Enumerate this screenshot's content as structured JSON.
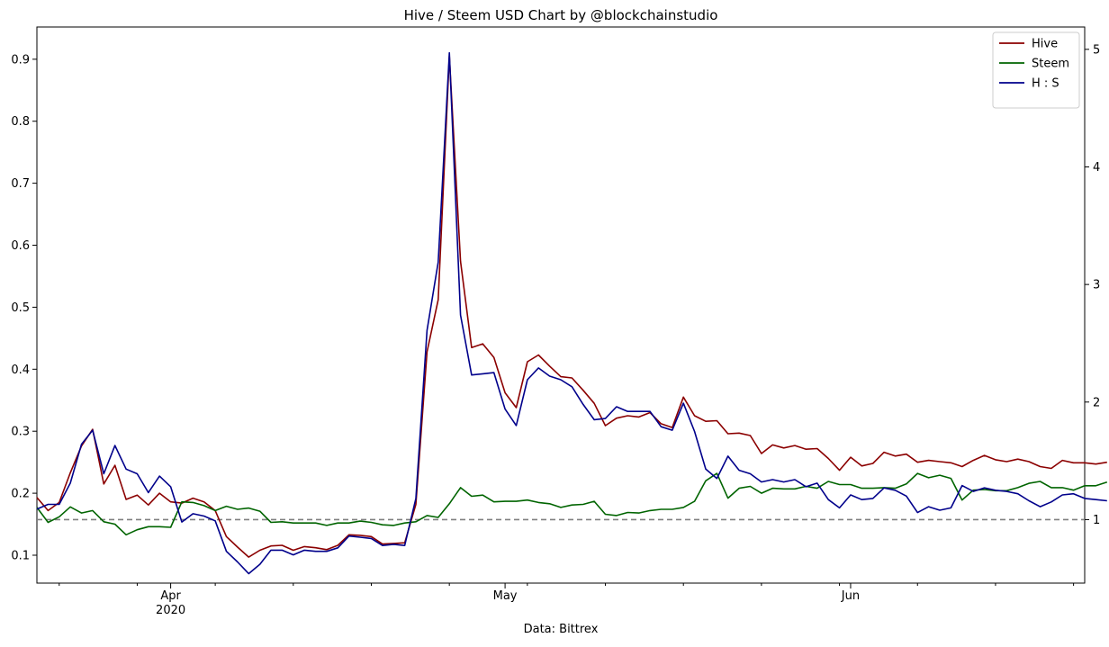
{
  "chart_data": {
    "type": "line",
    "title": "Hive / Steem USD Chart by @blockchainstudio",
    "xlabel": "Data: Bittrex",
    "ylabel": "",
    "ylim": [
      0.055,
      0.952
    ],
    "y2lim": [
      0.46,
      5.19
    ],
    "xlim": [
      "2020-03-20",
      "2020-06-22"
    ],
    "grid": false,
    "legend": "top-right",
    "x_ticks": [
      {
        "date": "2020-04-01",
        "label": "Apr",
        "sublabel": "2020"
      },
      {
        "date": "2020-05-01",
        "label": "May",
        "sublabel": ""
      },
      {
        "date": "2020-06-01",
        "label": "Jun",
        "sublabel": ""
      }
    ],
    "y_ticks": [
      0.1,
      0.2,
      0.3,
      0.4,
      0.5,
      0.6,
      0.7,
      0.8,
      0.9
    ],
    "y2_ticks": [
      1,
      2,
      3,
      4,
      5
    ],
    "reference_line": {
      "axis": "right",
      "value": 1.0,
      "style": "dashed",
      "color": "#808080"
    },
    "x_start": "2020-03-20",
    "series": [
      {
        "name": "Hive",
        "color": "#8b0000",
        "axis": "left",
        "values": [
          0.193,
          0.172,
          0.185,
          0.233,
          0.276,
          0.303,
          0.215,
          0.245,
          0.19,
          0.197,
          0.181,
          0.2,
          0.186,
          0.184,
          0.192,
          0.186,
          0.172,
          0.13,
          0.113,
          0.097,
          0.108,
          0.115,
          0.116,
          0.108,
          0.114,
          0.112,
          0.109,
          0.116,
          0.133,
          0.132,
          0.13,
          0.118,
          0.119,
          0.12,
          0.182,
          0.428,
          0.512,
          0.905,
          0.574,
          0.435,
          0.441,
          0.419,
          0.362,
          0.338,
          0.412,
          0.423,
          0.405,
          0.388,
          0.386,
          0.366,
          0.345,
          0.309,
          0.321,
          0.325,
          0.323,
          0.33,
          0.312,
          0.306,
          0.355,
          0.325,
          0.316,
          0.317,
          0.296,
          0.297,
          0.293,
          0.264,
          0.278,
          0.273,
          0.277,
          0.271,
          0.272,
          0.256,
          0.237,
          0.258,
          0.244,
          0.248,
          0.266,
          0.26,
          0.263,
          0.25,
          0.253,
          0.251,
          0.249,
          0.243,
          0.253,
          0.261,
          0.254,
          0.251,
          0.255,
          0.251,
          0.243,
          0.24,
          0.253,
          0.249,
          0.249,
          0.247,
          0.25
        ]
      },
      {
        "name": "Steem",
        "color": "#006400",
        "axis": "left",
        "values": [
          0.177,
          0.153,
          0.162,
          0.178,
          0.168,
          0.172,
          0.154,
          0.15,
          0.133,
          0.141,
          0.146,
          0.146,
          0.145,
          0.186,
          0.185,
          0.18,
          0.172,
          0.179,
          0.174,
          0.176,
          0.171,
          0.153,
          0.154,
          0.152,
          0.152,
          0.152,
          0.148,
          0.152,
          0.152,
          0.155,
          0.153,
          0.149,
          0.148,
          0.152,
          0.154,
          0.164,
          0.161,
          0.183,
          0.209,
          0.195,
          0.197,
          0.186,
          0.187,
          0.187,
          0.189,
          0.185,
          0.183,
          0.177,
          0.181,
          0.182,
          0.187,
          0.166,
          0.164,
          0.169,
          0.168,
          0.172,
          0.174,
          0.174,
          0.177,
          0.187,
          0.22,
          0.232,
          0.192,
          0.208,
          0.211,
          0.2,
          0.208,
          0.207,
          0.207,
          0.211,
          0.208,
          0.219,
          0.214,
          0.214,
          0.208,
          0.208,
          0.209,
          0.208,
          0.215,
          0.232,
          0.225,
          0.229,
          0.224,
          0.189,
          0.205,
          0.206,
          0.204,
          0.204,
          0.209,
          0.216,
          0.219,
          0.209,
          0.209,
          0.205,
          0.212,
          0.212,
          0.218
        ]
      },
      {
        "name": "H : S",
        "color": "#00008b",
        "axis": "right",
        "values": [
          1.09,
          1.13,
          1.13,
          1.31,
          1.64,
          1.76,
          1.39,
          1.63,
          1.43,
          1.39,
          1.23,
          1.37,
          1.28,
          0.98,
          1.05,
          1.03,
          0.99,
          0.73,
          0.64,
          0.54,
          0.62,
          0.74,
          0.74,
          0.7,
          0.74,
          0.73,
          0.73,
          0.76,
          0.86,
          0.85,
          0.84,
          0.78,
          0.79,
          0.78,
          1.18,
          2.61,
          3.19,
          4.97,
          2.74,
          2.23,
          2.24,
          2.25,
          1.94,
          1.8,
          2.19,
          2.29,
          2.22,
          2.19,
          2.13,
          1.98,
          1.85,
          1.86,
          1.96,
          1.92,
          1.92,
          1.92,
          1.79,
          1.76,
          1.99,
          1.75,
          1.43,
          1.35,
          1.54,
          1.42,
          1.39,
          1.32,
          1.34,
          1.32,
          1.34,
          1.28,
          1.31,
          1.17,
          1.1,
          1.21,
          1.17,
          1.18,
          1.27,
          1.25,
          1.2,
          1.06,
          1.11,
          1.08,
          1.1,
          1.29,
          1.24,
          1.27,
          1.25,
          1.24,
          1.22,
          1.16,
          1.11,
          1.15,
          1.21,
          1.22,
          1.18,
          1.17,
          1.16
        ]
      }
    ]
  }
}
